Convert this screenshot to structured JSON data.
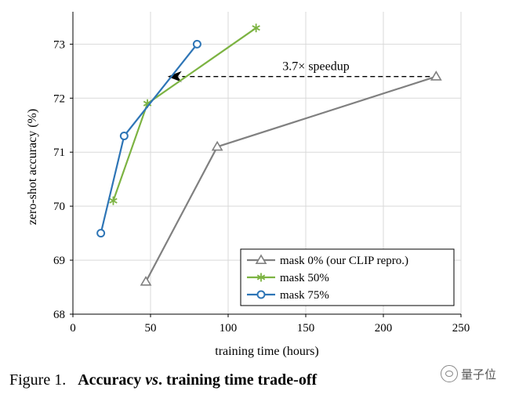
{
  "chart_data": {
    "type": "line",
    "xlabel": "training time (hours)",
    "ylabel": "zero-shot accuracy (%)",
    "xlim": [
      0,
      250
    ],
    "ylim": [
      68,
      73.6
    ],
    "xticks": [
      0,
      50,
      100,
      150,
      200,
      250
    ],
    "yticks": [
      68,
      69,
      70,
      71,
      72,
      73
    ],
    "grid": true,
    "legend": "bottom-right",
    "series": [
      {
        "name": "mask 0% (our CLIP repro.)",
        "marker": "triangle",
        "color": "#808080",
        "x": [
          47,
          93,
          234
        ],
        "y": [
          68.6,
          71.1,
          72.4
        ]
      },
      {
        "name": "mask 50%",
        "marker": "asterisk",
        "color": "#7cb342",
        "x": [
          26,
          48,
          118
        ],
        "y": [
          70.1,
          71.9,
          73.3
        ]
      },
      {
        "name": "mask 75%",
        "marker": "circle",
        "color": "#2e75b6",
        "x": [
          18,
          33,
          80
        ],
        "y": [
          69.5,
          71.3,
          73.0
        ]
      }
    ],
    "annotations": [
      {
        "text": "3.7× speedup",
        "arrow_from": [
          234,
          72.4
        ],
        "arrow_to": [
          63,
          72.4
        ]
      }
    ]
  },
  "caption": {
    "label": "Figure 1.",
    "title_a": "Accuracy",
    "title_vs": "vs",
    "title_b": ". training time trade-off",
    "trailing": "."
  },
  "watermark": {
    "text": "量子位"
  }
}
